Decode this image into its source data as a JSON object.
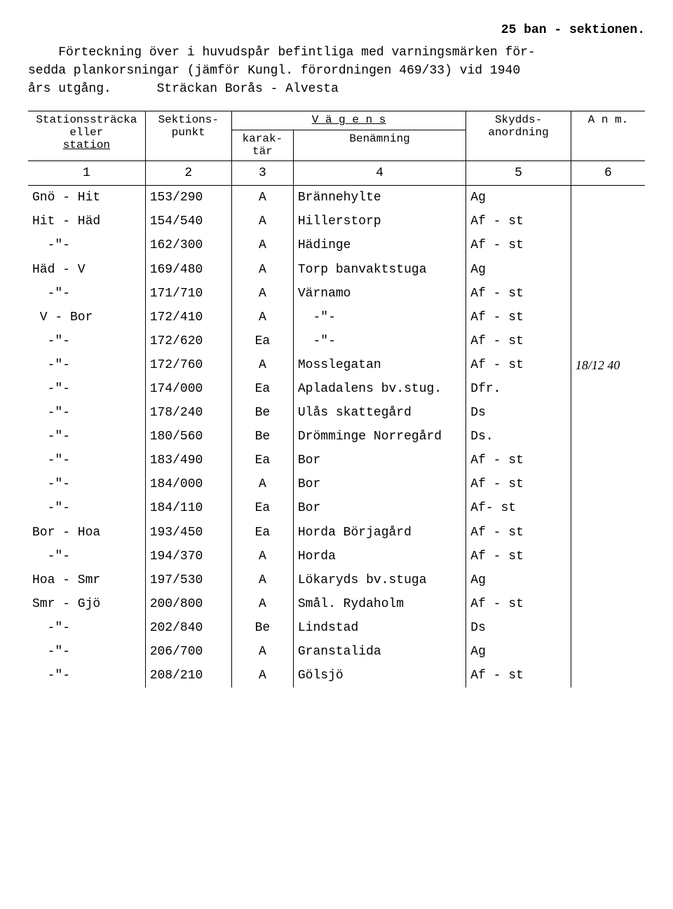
{
  "header": {
    "top_right": "25 ban - sektionen.",
    "para1": "    Förteckning över i huvudspår befintliga med varningsmärken för-",
    "para2": "sedda plankorsningar (jämför Kungl. förordningen 469/33) vid 1940",
    "para3": "års utgång.      Sträckan Borås - Alvesta"
  },
  "thead": {
    "c1a": "Stationssträcka",
    "c1b": "eller",
    "c1c": "station",
    "c2a": "Sektions-",
    "c2b": "punkt",
    "vagens": "V ä g e n s",
    "c3a": "karak-",
    "c3b": "tär",
    "c4": "Benämning",
    "c5a": "Skydds-",
    "c5b": "anordning",
    "c6": "A n m."
  },
  "colnums": [
    "1",
    "2",
    "3",
    "4",
    "5",
    "6"
  ],
  "rows": [
    {
      "c1": "Gnö - Hit",
      "c2": "153/290",
      "c3": "A",
      "c4": "Brännehylte",
      "c5": "Ag",
      "c6": ""
    },
    {
      "c1": "Hit - Häd",
      "c2": "154/540",
      "c3": "A",
      "c4": "Hillerstorp",
      "c5": "Af - st",
      "c6": ""
    },
    {
      "c1": "  -\"-",
      "c2": "162/300",
      "c3": "A",
      "c4": "Hädinge",
      "c5": "Af - st",
      "c6": ""
    },
    {
      "c1": "Häd - V",
      "c2": "169/480",
      "c3": "A",
      "c4": "Torp banvaktstuga",
      "c5": "Ag",
      "c6": ""
    },
    {
      "c1": "  -\"-",
      "c2": "171/710",
      "c3": "A",
      "c4": "Värnamo",
      "c5": "Af - st",
      "c6": ""
    },
    {
      "c1": " V - Bor",
      "c2": "172/410",
      "c3": "A",
      "c4": "  -\"-",
      "c5": "Af - st",
      "c6": ""
    },
    {
      "c1": "  -\"-",
      "c2": "172/620",
      "c3": "Ea",
      "c4": "  -\"-",
      "c5": "Af - st",
      "c6": ""
    },
    {
      "c1": "  -\"-",
      "c2": "172/760",
      "c3": "A",
      "c4": "Mosslegatan",
      "c5": "Af - st",
      "c6": "18/12 40"
    },
    {
      "c1": "  -\"-",
      "c2": "174/000",
      "c3": "Ea",
      "c4": "Apladalens bv.stug.",
      "c5": "Dfr.",
      "c6": ""
    },
    {
      "c1": "  -\"-",
      "c2": "178/240",
      "c3": "Be",
      "c4": "Ulås skattegård",
      "c5": "Ds",
      "c6": ""
    },
    {
      "c1": "  -\"-",
      "c2": "180/560",
      "c3": "Be",
      "c4": "Drömminge Norregård",
      "c5": "Ds.",
      "c6": ""
    },
    {
      "c1": "  -\"-",
      "c2": "183/490",
      "c3": "Ea",
      "c4": "Bor",
      "c5": "Af - st",
      "c6": ""
    },
    {
      "c1": "  -\"-",
      "c2": "184/000",
      "c3": "A",
      "c4": "Bor",
      "c5": "Af - st",
      "c6": ""
    },
    {
      "c1": "  -\"-",
      "c2": "184/110",
      "c3": "Ea",
      "c4": "Bor",
      "c5": "Af- st",
      "c6": ""
    },
    {
      "c1": "Bor - Hoa",
      "c2": "193/450",
      "c3": "Ea",
      "c4": "Horda Börjagård",
      "c5": "Af - st",
      "c6": ""
    },
    {
      "c1": "  -\"-",
      "c2": "194/370",
      "c3": "A",
      "c4": "Horda",
      "c5": "Af - st",
      "c6": ""
    },
    {
      "c1": "Hoa - Smr",
      "c2": "197/530",
      "c3": "A",
      "c4": "Lökaryds bv.stuga",
      "c5": "Ag",
      "c6": ""
    },
    {
      "c1": "Smr - Gjö",
      "c2": "200/800",
      "c3": "A",
      "c4": "Smål. Rydaholm",
      "c5": "Af - st",
      "c6": ""
    },
    {
      "c1": "  -\"-",
      "c2": "202/840",
      "c3": "Be",
      "c4": "Lindstad",
      "c5": "Ds",
      "c6": ""
    },
    {
      "c1": "  -\"-",
      "c2": "206/700",
      "c3": "A",
      "c4": "Granstalida",
      "c5": "Ag",
      "c6": ""
    },
    {
      "c1": "  -\"-",
      "c2": "208/210",
      "c3": "A",
      "c4": "Gölsjö",
      "c5": "Af - st",
      "c6": ""
    }
  ]
}
